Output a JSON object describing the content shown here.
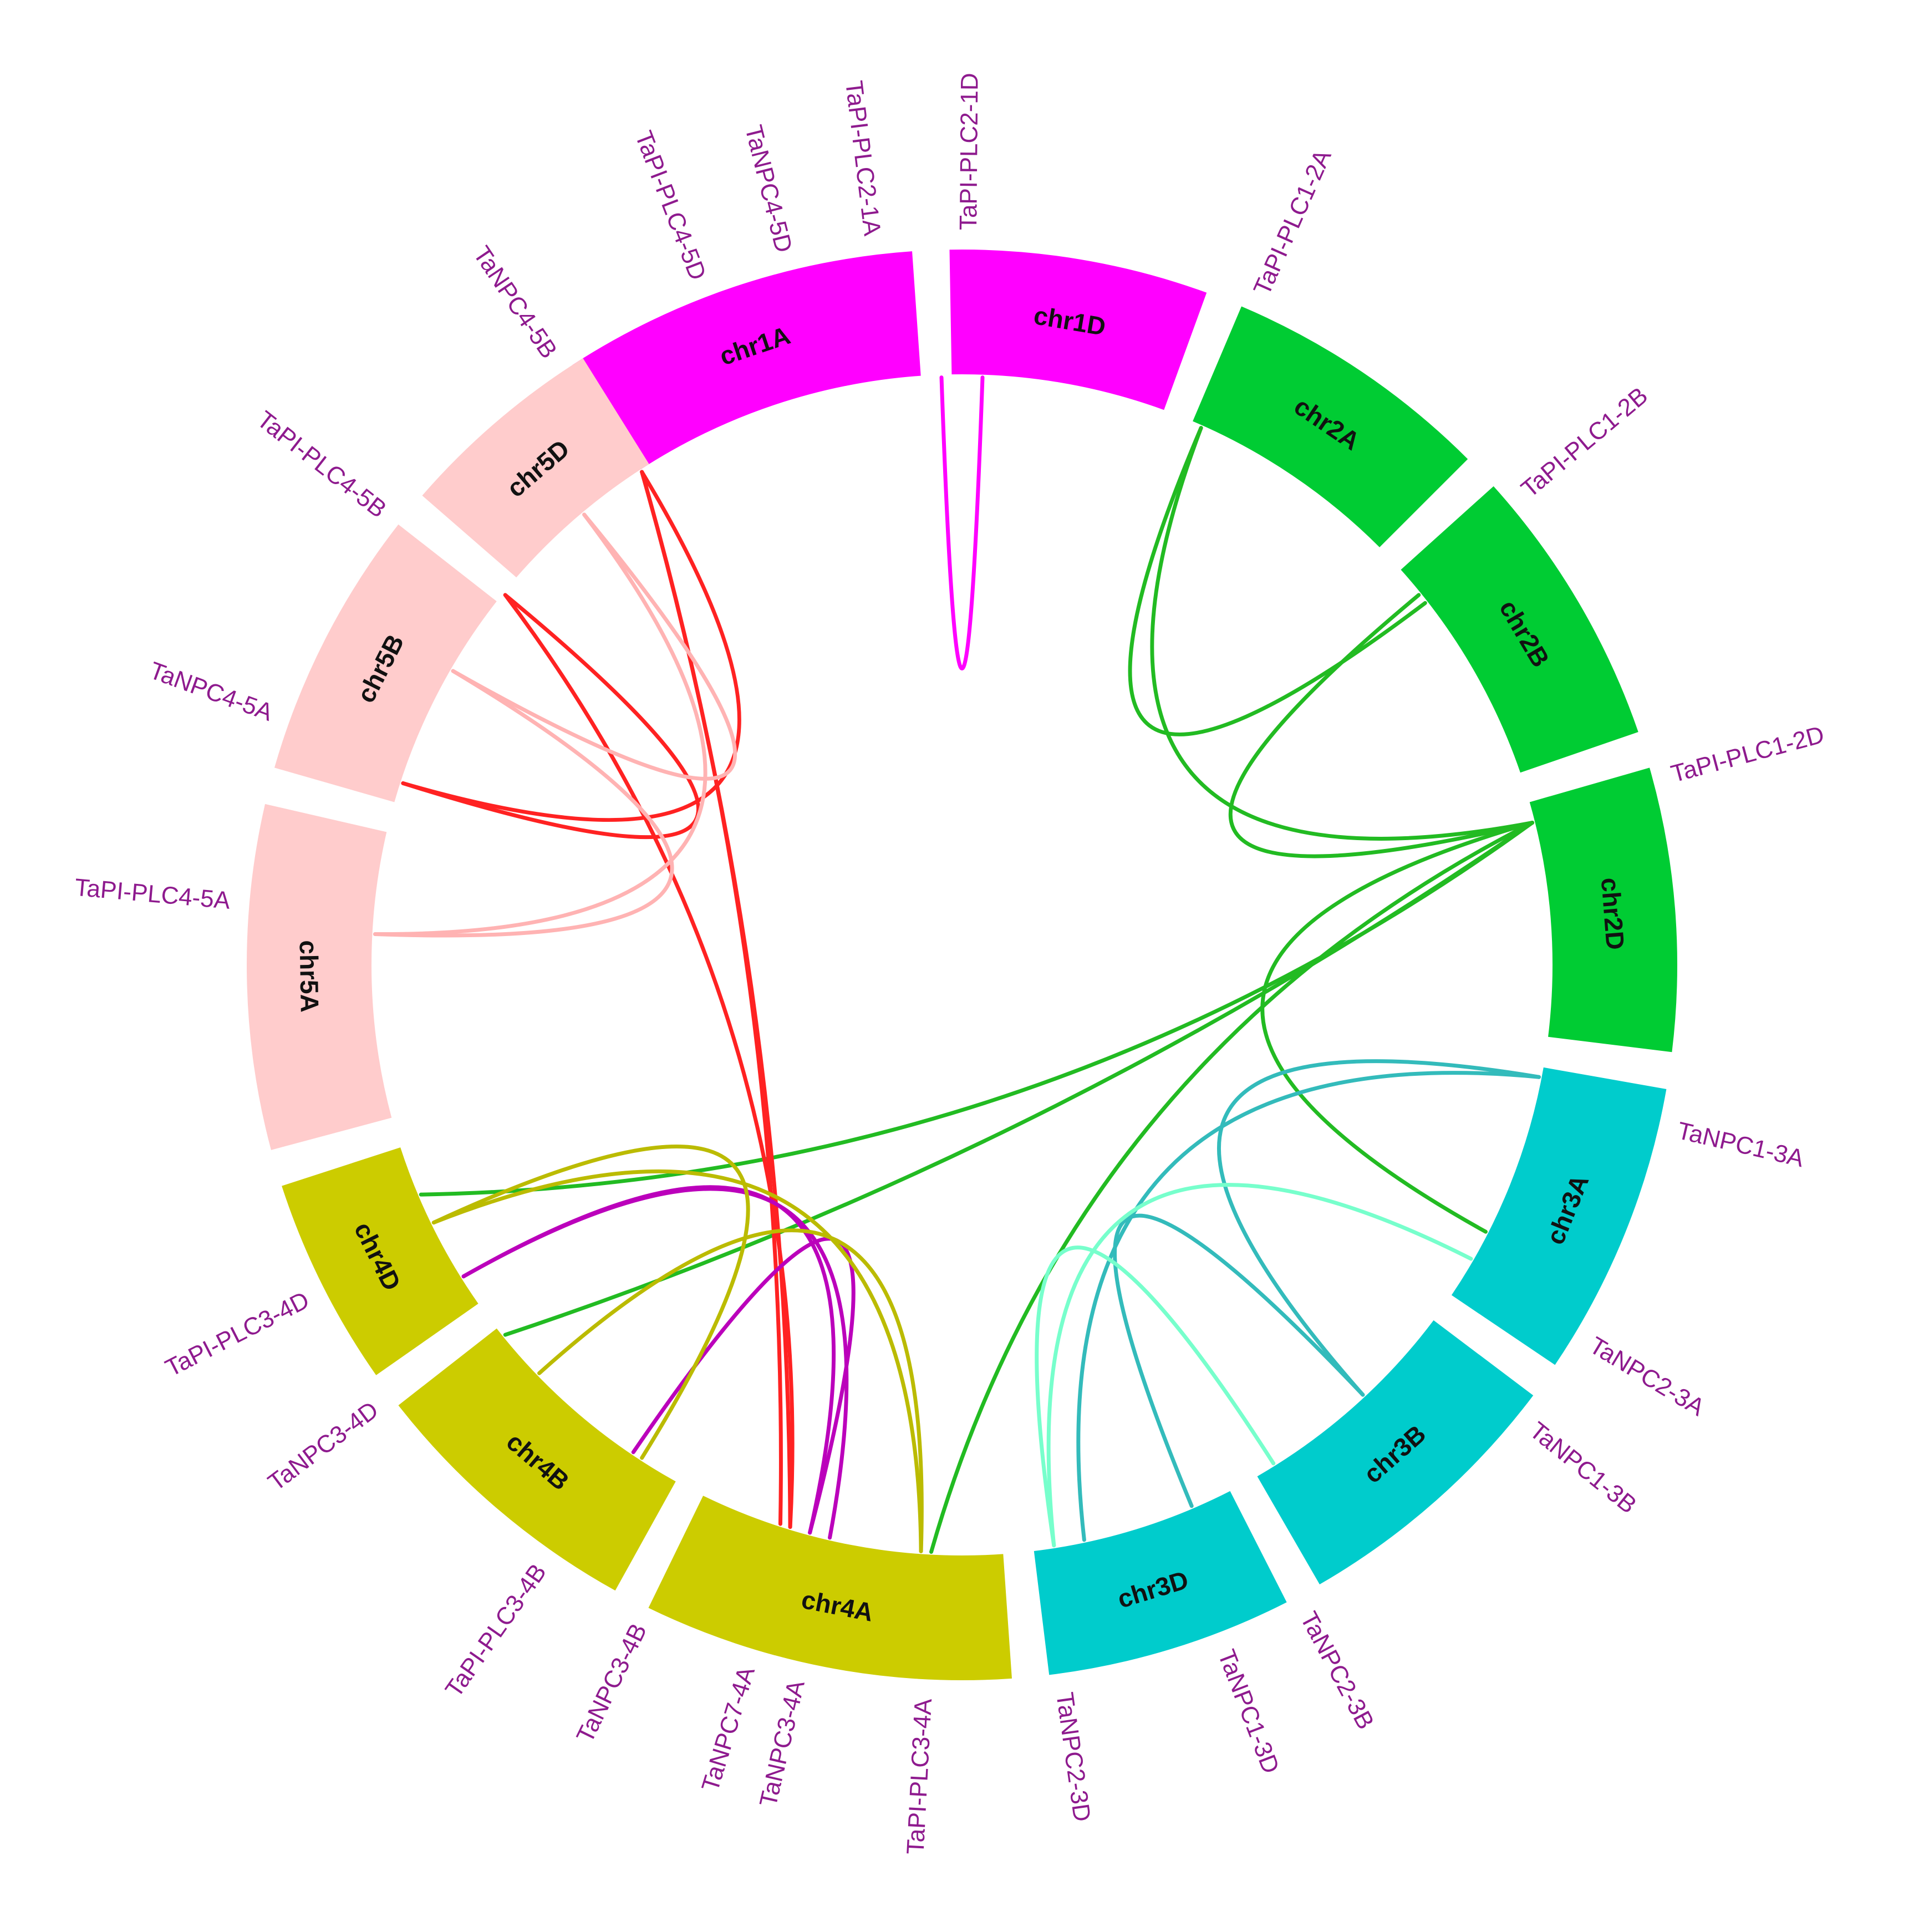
{
  "diagram": {
    "type": "circos",
    "chromosomes": [
      {
        "name": "chr1A",
        "start_deg": -33,
        "end_deg": -4,
        "color": "#ff00ff"
      },
      {
        "name": "chr1D",
        "start_deg": -1,
        "end_deg": 20,
        "color": "#ff00ff"
      },
      {
        "name": "chr2A",
        "start_deg": 23,
        "end_deg": 45,
        "color": "#00cc33"
      },
      {
        "name": "chr2B",
        "start_deg": 48,
        "end_deg": 71,
        "color": "#00cc33"
      },
      {
        "name": "chr2D",
        "start_deg": 74,
        "end_deg": 97,
        "color": "#00cc33"
      },
      {
        "name": "chr3A",
        "start_deg": 100,
        "end_deg": 124,
        "color": "#00cccc"
      },
      {
        "name": "chr3B",
        "start_deg": 127,
        "end_deg": 150,
        "color": "#00cccc"
      },
      {
        "name": "chr3D",
        "start_deg": 153,
        "end_deg": 173,
        "color": "#00cccc"
      },
      {
        "name": "chr4A",
        "start_deg": 176,
        "end_deg": 206,
        "color": "#cccc00"
      },
      {
        "name": "chr4B",
        "start_deg": 209,
        "end_deg": 232,
        "color": "#cccc00"
      },
      {
        "name": "chr4D",
        "start_deg": 235,
        "end_deg": 252,
        "color": "#cccc00"
      },
      {
        "name": "chr5A",
        "start_deg": 255,
        "end_deg": 283,
        "color": "#ffcccc"
      },
      {
        "name": "chr5B",
        "start_deg": 286,
        "end_deg": 308,
        "color": "#ffcccc"
      },
      {
        "name": "chr5D",
        "start_deg": 311,
        "end_deg": 328,
        "color": "#ffcccc"
      }
    ],
    "genes": [
      {
        "name": "TaPI-PLC2-1D",
        "deg": 0.5
      },
      {
        "name": "TaPI-PLC2-1A",
        "deg": -7
      },
      {
        "name": "TaNPC4-5D",
        "deg": -14
      },
      {
        "name": "TaPI-PLC4-5D",
        "deg": -21
      },
      {
        "name": "TaNPC4-5B",
        "deg": -34
      },
      {
        "name": "TaPI-PLC4-5B",
        "deg": -52
      },
      {
        "name": "TaNPC4-5A",
        "deg": -70
      },
      {
        "name": "TaPI-PLC4-5A",
        "deg": -85
      },
      {
        "name": "TaPI-PLC1-2A",
        "deg": 24
      },
      {
        "name": "TaPI-PLC1-2B",
        "deg": 50
      },
      {
        "name": "TaPI-PLC1-2D",
        "deg": 75
      },
      {
        "name": "TaNPC1-3A",
        "deg": 103
      },
      {
        "name": "TaNPC2-3A",
        "deg": 121
      },
      {
        "name": "TaNPC1-3B",
        "deg": 129
      },
      {
        "name": "TaNPC2-3B",
        "deg": 152
      },
      {
        "name": "TaNPC1-3D",
        "deg": 159
      },
      {
        "name": "TaNPC2-3D",
        "deg": 172
      },
      {
        "name": "TaPI-PLC3-4A",
        "deg": 183
      },
      {
        "name": "TaNPC3-4A",
        "deg": 193
      },
      {
        "name": "TaNPC7-4A",
        "deg": 197
      },
      {
        "name": "TaNPC3-4B",
        "deg": 206
      },
      {
        "name": "TaPI-PLC3-4B",
        "deg": 215
      },
      {
        "name": "TaNPC3-4D",
        "deg": 233
      },
      {
        "name": "TaPI-PLC3-4D",
        "deg": 243
      }
    ],
    "links": [
      {
        "from": 2,
        "to": -2,
        "color": "#ff00ff"
      },
      {
        "from": 24,
        "to": 52,
        "color": "#22bb22"
      },
      {
        "from": 24,
        "to": 76,
        "color": "#22bb22"
      },
      {
        "from": 51,
        "to": 76,
        "color": "#22bb22"
      },
      {
        "from": 76,
        "to": 117,
        "color": "#22bb22"
      },
      {
        "from": 76,
        "to": 183,
        "color": "#22bb22"
      },
      {
        "from": 76,
        "to": 231,
        "color": "#22bb22"
      },
      {
        "from": 76,
        "to": 247,
        "color": "#22bb22"
      },
      {
        "from": 101,
        "to": 168,
        "color": "#33bbbb"
      },
      {
        "from": 101,
        "to": 137,
        "color": "#33bbbb"
      },
      {
        "from": 137,
        "to": 157,
        "color": "#33bbbb"
      },
      {
        "from": 120,
        "to": 171,
        "color": "#77ffcc"
      },
      {
        "from": 148,
        "to": 171,
        "color": "#77ffcc"
      },
      {
        "from": -33,
        "to": 197,
        "color": "#ff2222"
      },
      {
        "from": -33,
        "to": 198,
        "color": "#ff2222"
      },
      {
        "from": -51,
        "to": 197,
        "color": "#ff2222"
      },
      {
        "from": -51,
        "to": -72,
        "color": "#ff2222"
      },
      {
        "from": -33,
        "to": -72,
        "color": "#ff2222"
      },
      {
        "from": -40,
        "to": -87,
        "color": "#ffb3b3"
      },
      {
        "from": -60,
        "to": -87,
        "color": "#ffb3b3"
      },
      {
        "from": -40,
        "to": -60,
        "color": "#ffb3b3"
      },
      {
        "from": 195,
        "to": 214,
        "color": "#bb00bb"
      },
      {
        "from": 195,
        "to": 238,
        "color": "#bb00bb"
      },
      {
        "from": 193,
        "to": 238,
        "color": "#bb00bb"
      },
      {
        "from": 184,
        "to": 244,
        "color": "#bbbb00"
      },
      {
        "from": 184,
        "to": 226,
        "color": "#bbbb00"
      },
      {
        "from": 213,
        "to": 244,
        "color": "#bbbb00"
      }
    ]
  }
}
